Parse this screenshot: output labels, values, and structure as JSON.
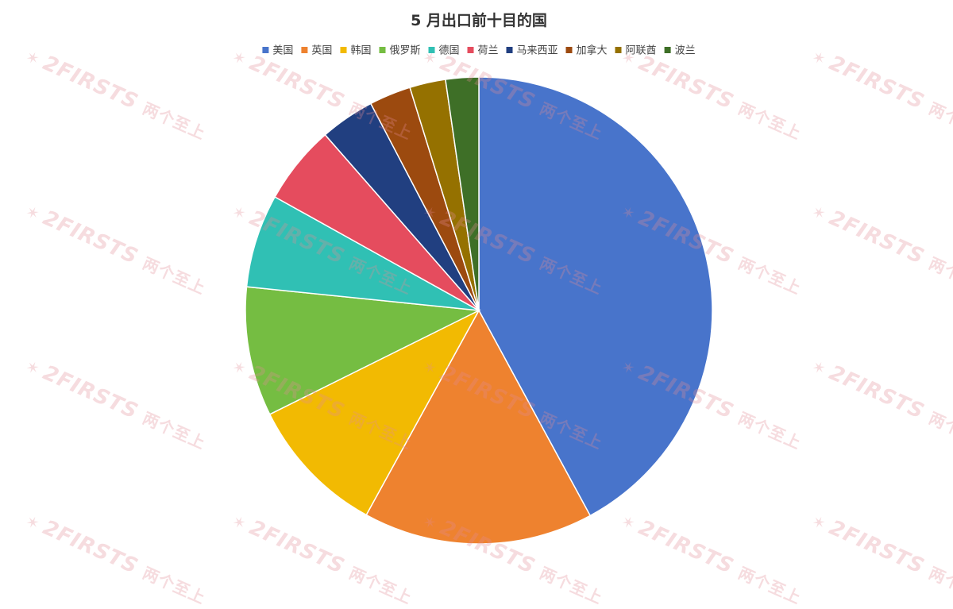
{
  "watermark": {
    "text": "2FIRSTS",
    "cn": "两个至上"
  },
  "chart_data": {
    "type": "pie",
    "title": "5 月出口前十目的国",
    "legend_position": "top",
    "categories": [
      "美国",
      "英国",
      "韩国",
      "俄罗斯",
      "德国",
      "荷兰",
      "马来西亚",
      "加拿大",
      "阿联酋",
      "波兰"
    ],
    "values": [
      42.3,
      16.0,
      9.7,
      9.0,
      6.5,
      5.5,
      3.8,
      2.9,
      2.5,
      2.3
    ],
    "colors": [
      "#4874CB",
      "#EE822F",
      "#F2BA02",
      "#75BD42",
      "#30C0B4",
      "#E54C5E",
      "#213F80",
      "#9C4A0F",
      "#957100",
      "#3E6F27"
    ]
  }
}
